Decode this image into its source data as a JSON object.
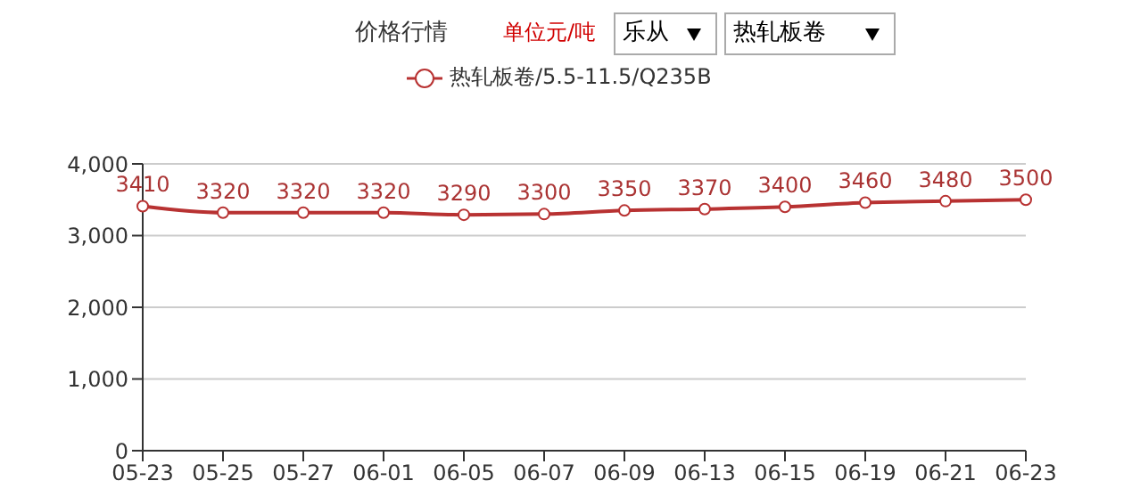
{
  "chart_data": {
    "type": "line",
    "title": "价格行情",
    "subtitle": "单位元/吨",
    "annotations": [
      "乐从",
      "热轧板卷"
    ],
    "categories": [
      "05-23",
      "05-25",
      "05-27",
      "06-01",
      "06-05",
      "06-07",
      "06-09",
      "06-13",
      "06-15",
      "06-19",
      "06-21",
      "06-23"
    ],
    "series": [
      {
        "name": "热轧板卷/5.5-11.5/Q235B",
        "color": "#b83232",
        "values": [
          3410,
          3320,
          3320,
          3320,
          3290,
          3300,
          3350,
          3370,
          3400,
          3460,
          3480,
          3500
        ]
      }
    ],
    "ylim": [
      0,
      4000
    ],
    "yticks": [
      {
        "value": 0,
        "label": "0"
      },
      {
        "value": 1000,
        "label": "1,000"
      },
      {
        "value": 2000,
        "label": "2,000"
      },
      {
        "value": 3000,
        "label": "3,000"
      },
      {
        "value": 4000,
        "label": "4,000"
      }
    ],
    "grid": "y",
    "legend": "top",
    "marker": "circle",
    "line_style": "solid",
    "data_labels": true
  }
}
